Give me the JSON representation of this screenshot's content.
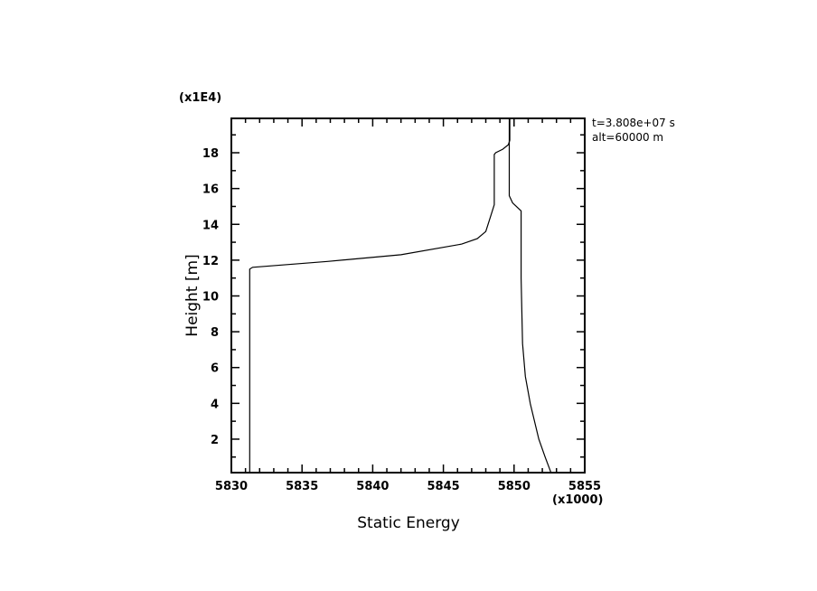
{
  "chart_data": {
    "type": "line",
    "title": "",
    "xlabel": "Static Energy",
    "ylabel": "Height [m]",
    "x_multiplier_label": "(x1000)",
    "y_multiplier_label": "(x1E4)",
    "annotations": [
      "t=3.808e+07 s",
      "alt=60000 m"
    ],
    "xlim": [
      5830,
      5855
    ],
    "ylim": [
      0.13,
      19.92
    ],
    "xticks": [
      5830,
      5835,
      5840,
      5845,
      5850,
      5855
    ],
    "xtick_labels": [
      "5830",
      "5835",
      "5840",
      "5845",
      "5850",
      "5855"
    ],
    "yticks": [
      2,
      4,
      6,
      8,
      10,
      12,
      14,
      16,
      18
    ],
    "ytick_labels": [
      "2",
      "4",
      "6",
      "8",
      "10",
      "12",
      "14",
      "16",
      "18"
    ],
    "grid": false,
    "color": "#000000",
    "series": [
      {
        "x": [
          5831.3,
          5831.3,
          5831.5,
          5836.8,
          5842.0,
          5846.3,
          5847.4,
          5848.0,
          5848.4,
          5848.6,
          5848.6,
          5848.7,
          5849.2,
          5849.6,
          5849.7,
          5849.7
        ],
        "y": [
          0.13,
          11.5,
          11.6,
          11.93,
          12.3,
          12.9,
          13.2,
          13.6,
          14.6,
          15.1,
          17.9,
          18.0,
          18.2,
          18.45,
          18.7,
          19.92
        ]
      },
      {
        "x": [
          5849.66,
          5849.66,
          5849.9,
          5850.5,
          5850.5,
          5850.6,
          5850.8,
          5851.15,
          5851.75,
          5852.2,
          5852.6
        ],
        "y": [
          19.92,
          15.6,
          15.2,
          14.75,
          11.0,
          7.34,
          5.5,
          3.97,
          2.0,
          1.0,
          0.15
        ]
      }
    ]
  }
}
